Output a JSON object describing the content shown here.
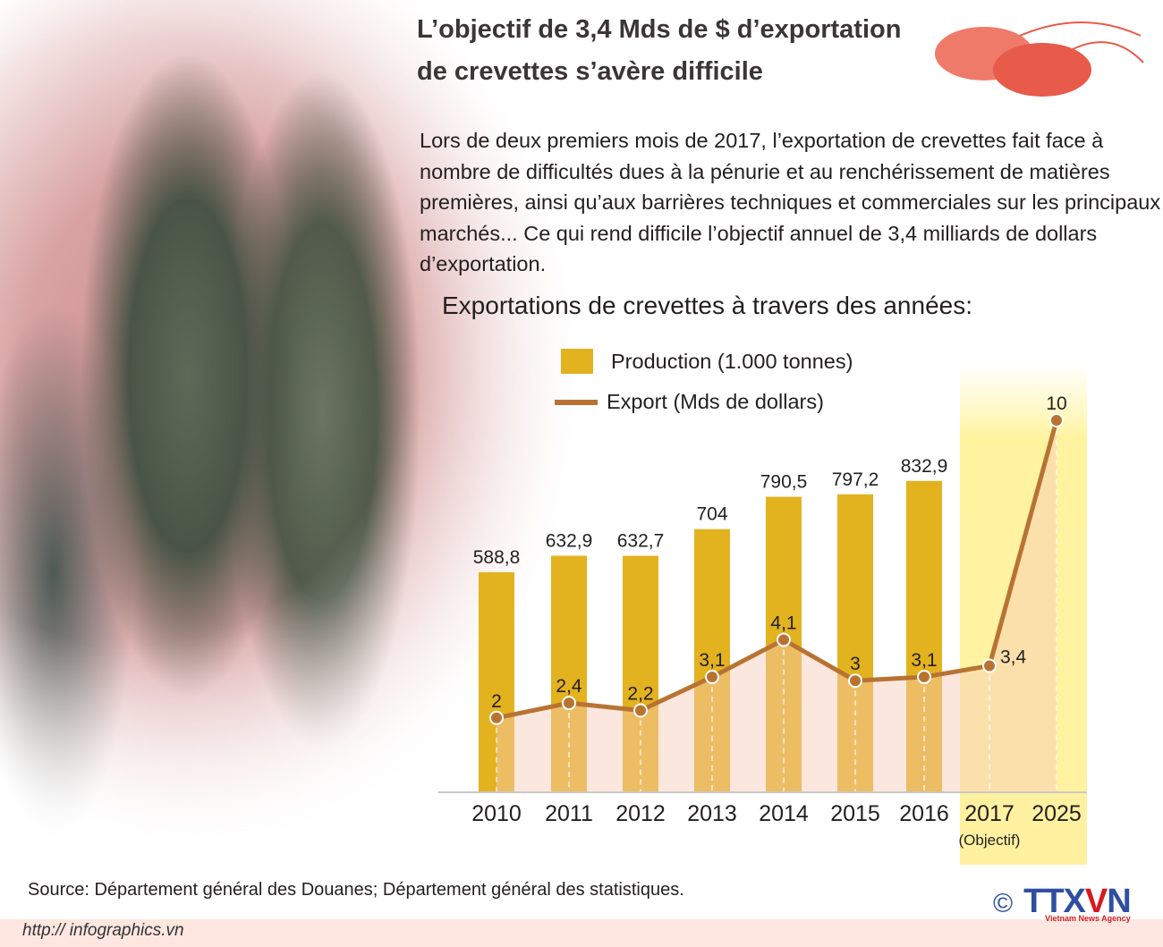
{
  "title_lines": [
    "L’objectif de 3,4 Mds de $ d’exportation",
    "de crevettes s’avère difficile"
  ],
  "intro_text": "Lors de deux premiers mois de 2017, l’exportation de crevettes fait face à nombre de difficultés dues à la pénurie et au renchérissement de matières premières, ainsi qu’aux barrières techniques et commerciales sur les principaux marchés... Ce qui rend difficile l’objectif annuel de 3,4 milliards de dollars d’exportation.",
  "chart_data": {
    "type": "bar",
    "title": "Exportations de crevettes à travers des années:",
    "categories": [
      "2010",
      "2011",
      "2012",
      "2013",
      "2014",
      "2015",
      "2016",
      "2017",
      "2025"
    ],
    "category_notes": {
      "2017": "(Objectif)"
    },
    "series": [
      {
        "name": "Production (1.000 tonnes)",
        "type": "bar",
        "color": "#e3b21f",
        "values": [
          588.8,
          632.9,
          632.7,
          704,
          790.5,
          797.2,
          832.9,
          null,
          null
        ],
        "labels": [
          "588,8",
          "632,9",
          "632,7",
          "704",
          "790,5",
          "797,2",
          "832,9",
          "",
          ""
        ]
      },
      {
        "name": "Export (Mds de dollars)",
        "type": "line",
        "color": "#b87333",
        "values": [
          2,
          2.4,
          2.2,
          3.1,
          4.1,
          3,
          3.1,
          3.4,
          10
        ],
        "labels": [
          "2",
          "2,4",
          "2,2",
          "3,1",
          "4,1",
          "3",
          "3,1",
          "3,4",
          "10"
        ]
      }
    ],
    "highlight_categories": [
      "2017",
      "2025"
    ],
    "legend_position": "top-left",
    "grid": false
  },
  "source": "Source: Département général des Douanes; Département général des statistiques.",
  "footer_url": "http:// infographics.vn",
  "logo": {
    "copyright": "©",
    "name_a": "TTX",
    "name_b": "V",
    "name_c": "N",
    "tagline": "Vietnam News Agency"
  }
}
